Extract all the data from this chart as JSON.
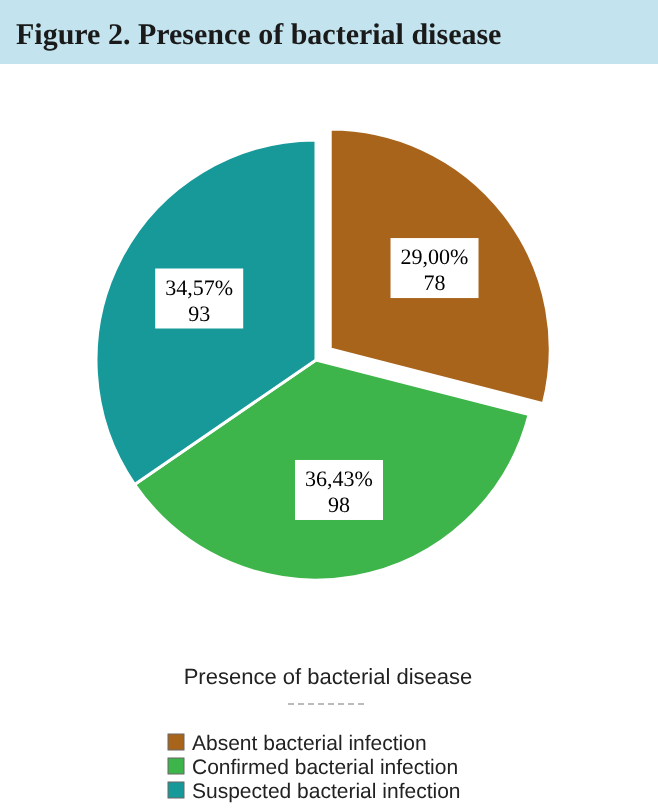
{
  "chart_data": {
    "type": "pie",
    "title": "Figure 2. Presence of bacterial disease",
    "legend_title": "Presence of bacterial disease",
    "legend": "bottom",
    "categories": [
      "Absent bacterial infection",
      "Confirmed bacterial infection",
      "Suspected bacterial infection"
    ],
    "values": [
      78,
      98,
      93
    ],
    "value_labels": [
      "29,00%\n78",
      "36,43%\n98",
      "34,57%\n93"
    ],
    "colors": [
      "#a9641c",
      "#3db54a",
      "#17999a"
    ]
  }
}
